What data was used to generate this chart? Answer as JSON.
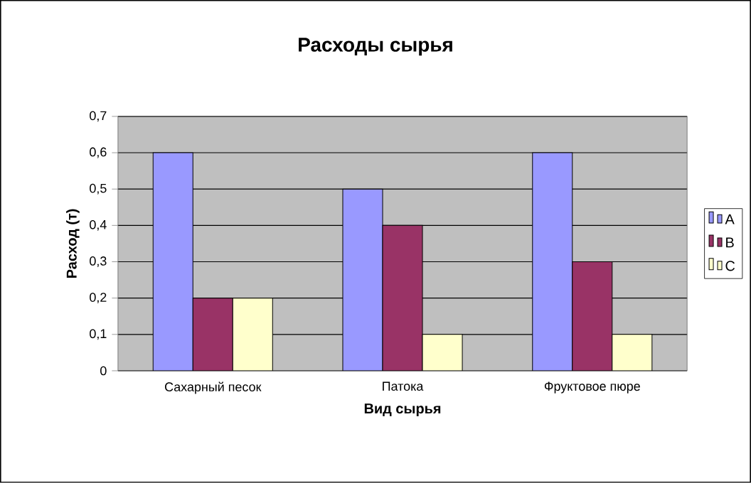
{
  "chart_data": {
    "type": "bar",
    "title": "Расходы сырья",
    "xlabel": "Вид сырья",
    "ylabel": "Расход (т)",
    "categories": [
      "Сахарный песок",
      "Патока",
      "Фруктовое пюре"
    ],
    "series": [
      {
        "name": "A",
        "color": "#9999ff",
        "values": [
          0.6,
          0.5,
          0.6
        ]
      },
      {
        "name": "B",
        "color": "#993366",
        "values": [
          0.2,
          0.4,
          0.3
        ]
      },
      {
        "name": "C",
        "color": "#ffffcc",
        "values": [
          0.2,
          0.1,
          0.1
        ]
      }
    ],
    "ylim": [
      0,
      0.7
    ],
    "yticks": [
      0,
      {
        "value": 0.1,
        "label": "0,1"
      },
      {
        "value": 0.2,
        "label": "0,2"
      },
      {
        "value": 0.3,
        "label": "0,3"
      },
      {
        "value": 0.4,
        "label": "0,4"
      },
      {
        "value": 0.5,
        "label": "0,5"
      },
      {
        "value": 0.6,
        "label": "0,6"
      },
      {
        "value": 0.7,
        "label": "0,7"
      }
    ],
    "grid": "y",
    "legend": "right"
  }
}
